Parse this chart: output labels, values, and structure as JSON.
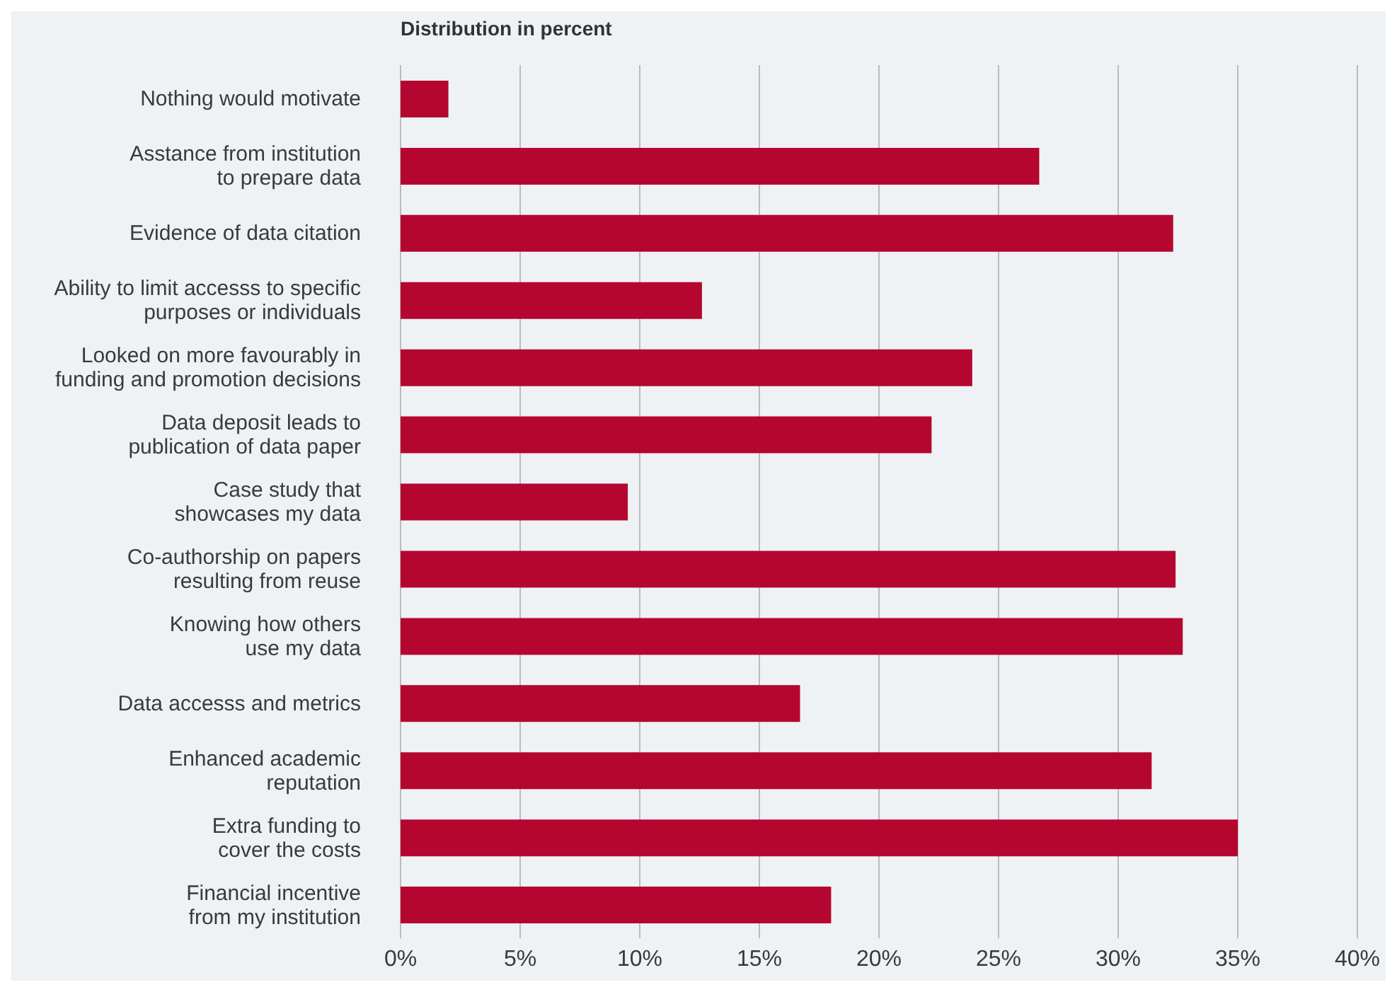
{
  "chart_data": {
    "type": "bar",
    "orientation": "horizontal",
    "title": "Distribution in percent",
    "categories": [
      "Nothing would motivate",
      "Asstance from institution\nto prepare data",
      "Evidence of data citation",
      "Ability to limit accesss to specific\npurposes or individuals",
      "Looked on more favourably in\nfunding and promotion decisions",
      "Data deposit leads to\npublication of data paper",
      "Case study that\nshowcases my data",
      "Co-authorship on papers\nresulting from reuse",
      "Knowing how others\nuse my data",
      "Data accesss and metrics",
      "Enhanced academic\nreputation",
      "Extra funding to\ncover the costs",
      "Financial incentive\nfrom my institution"
    ],
    "values": [
      2.0,
      26.7,
      32.3,
      12.6,
      23.9,
      22.2,
      9.5,
      32.4,
      32.7,
      16.7,
      31.4,
      35.0,
      18.0
    ],
    "color": "#b5062f",
    "xlim": [
      0,
      40
    ],
    "xticks": [
      {
        "value": 0,
        "label": "0%"
      },
      {
        "value": 5,
        "label": "5%"
      },
      {
        "value": 10,
        "label": "10%"
      },
      {
        "value": 15,
        "label": "15%"
      },
      {
        "value": 20,
        "label": "20%"
      },
      {
        "value": 25,
        "label": "25%"
      },
      {
        "value": 30,
        "label": "30%"
      },
      {
        "value": 35,
        "label": "35%"
      },
      {
        "value": 40,
        "label": "40%"
      }
    ],
    "grid": "x",
    "legend": false
  }
}
